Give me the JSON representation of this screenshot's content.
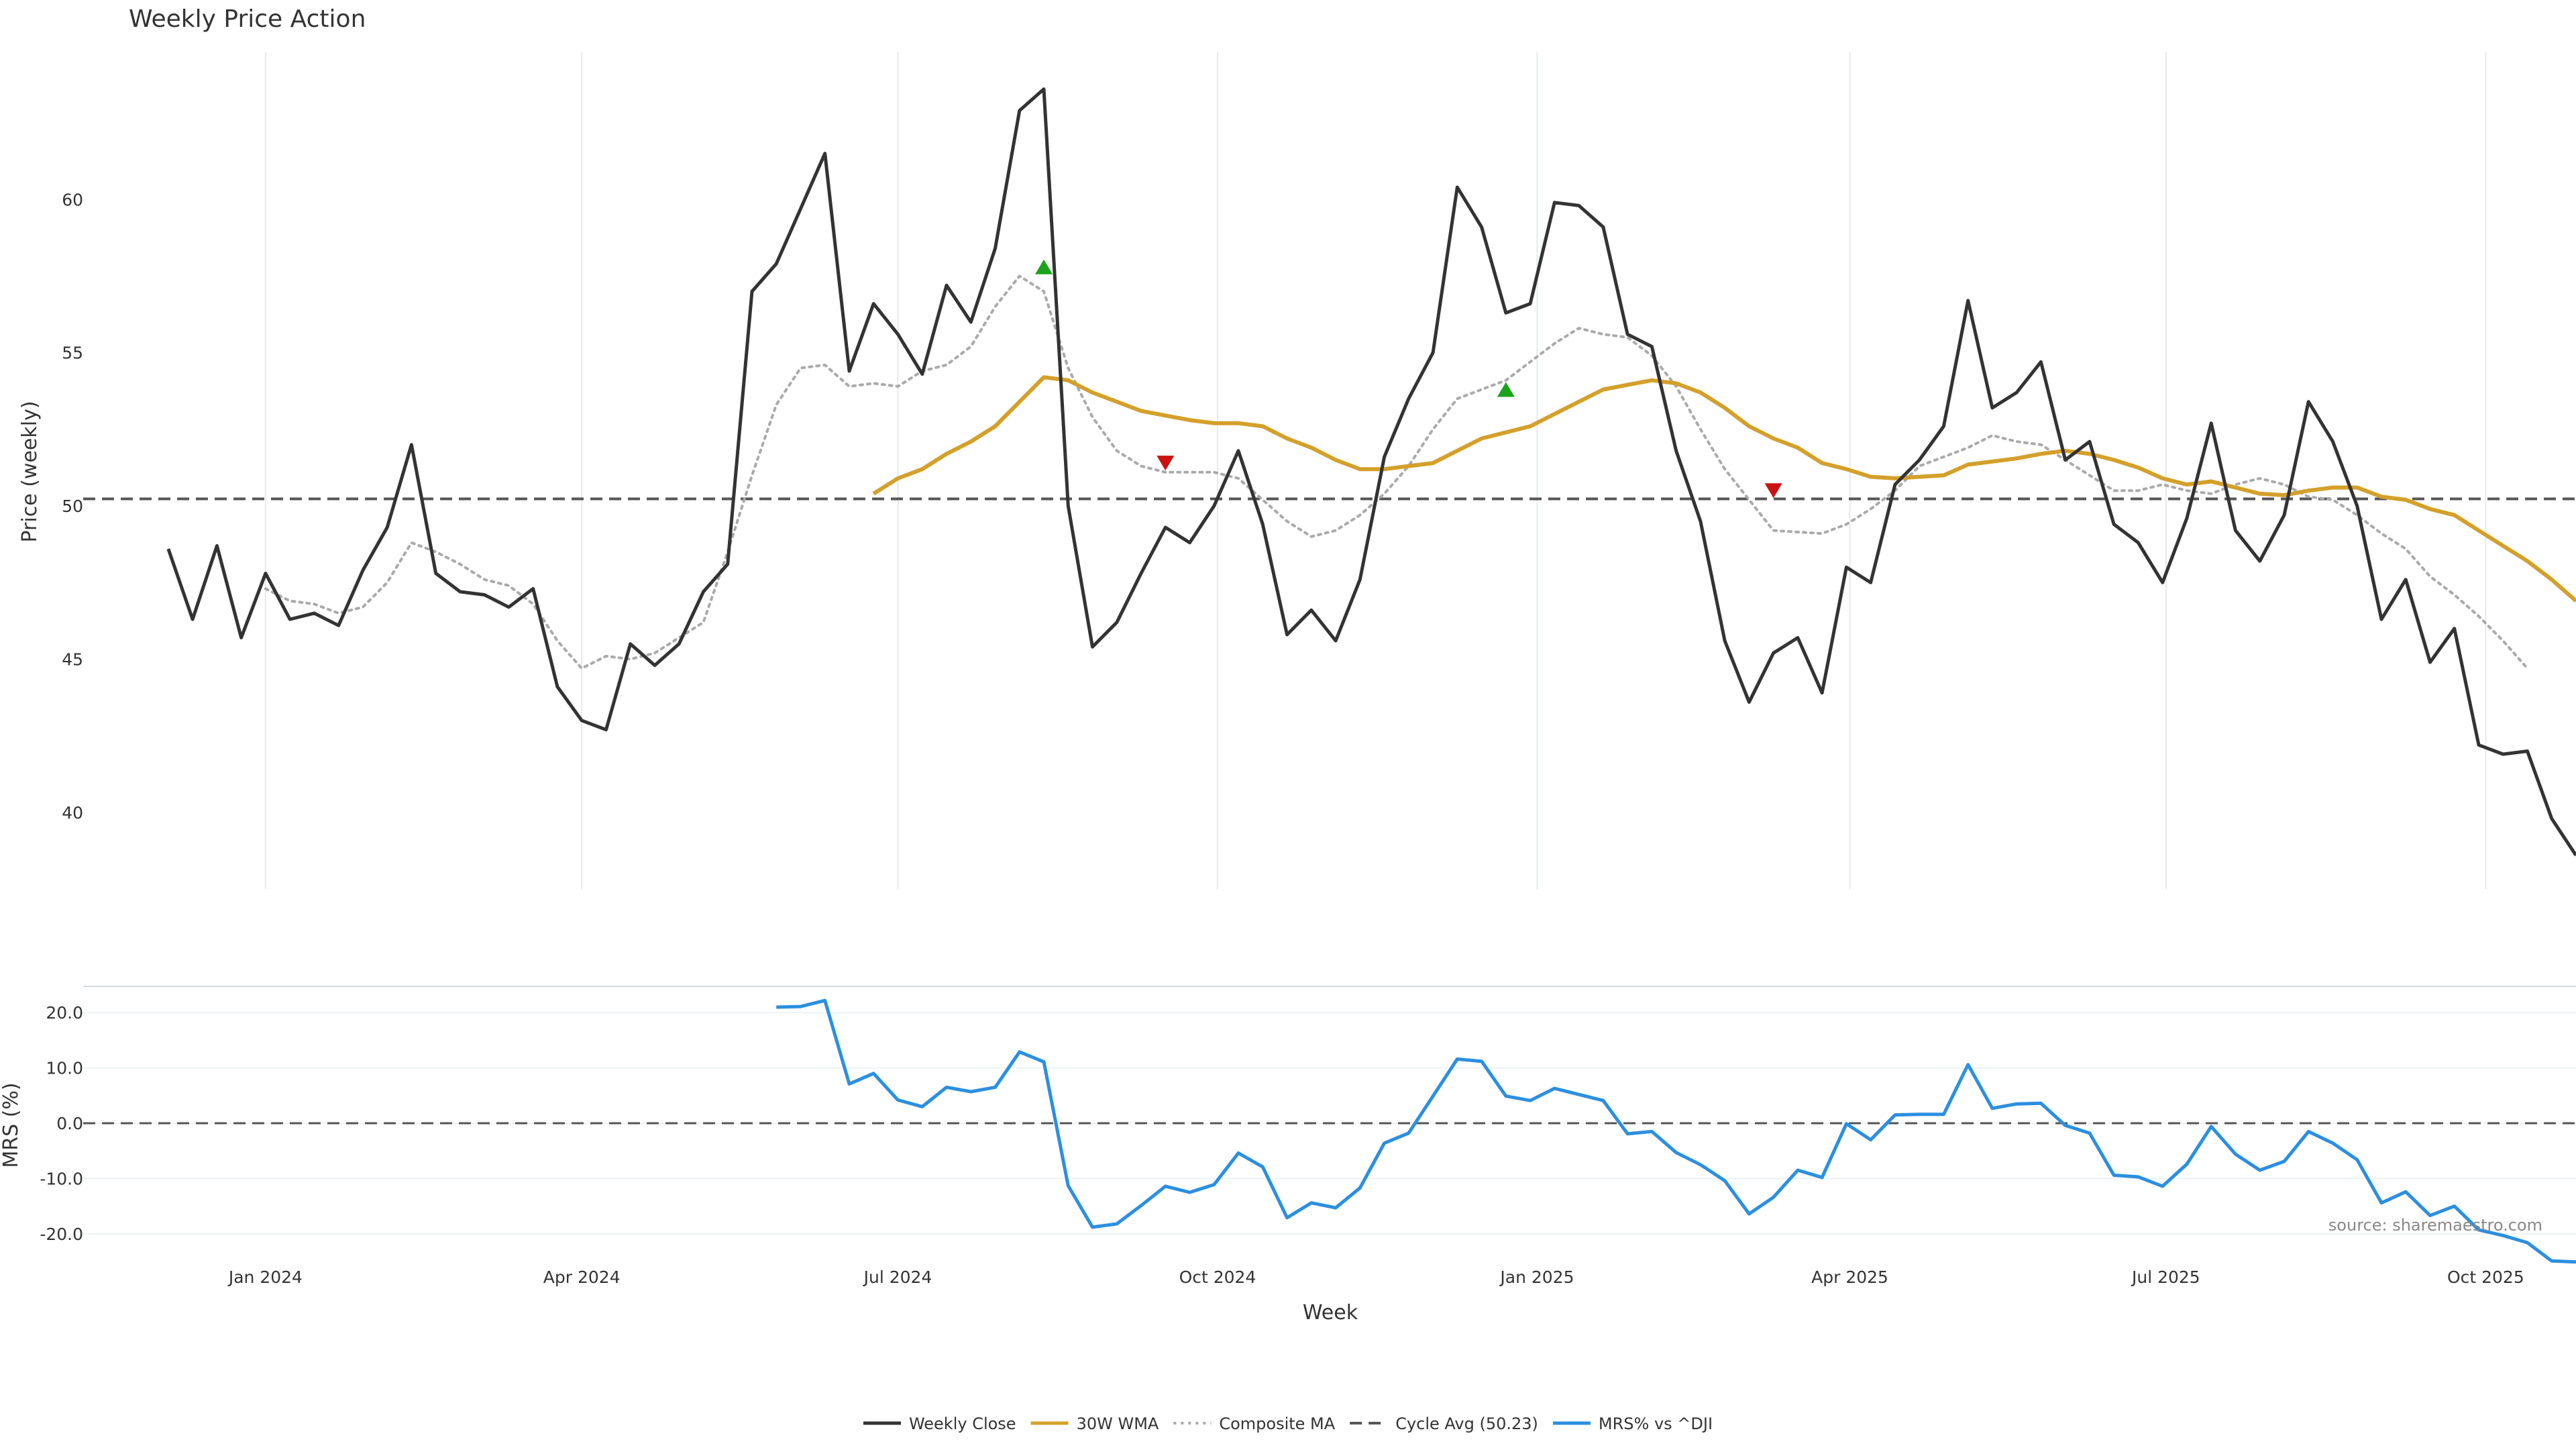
{
  "colors": {
    "close": "#333333",
    "wma": "#d4a02a",
    "composite": "#aaaaaa",
    "cycle": "#555555",
    "mrs": "#2b8fe0",
    "buy": "#1aa31a",
    "sell": "#cc1111",
    "grid": "#e4eaee"
  },
  "chart_data": [
    {
      "type": "line",
      "title": "Weekly Price Action",
      "xlabel": "",
      "ylabel": "Price (weekly)",
      "x_start": "2023-12-04",
      "x_step_days": 7,
      "x_tick_labels": [
        "Jan 2024",
        "Apr 2024",
        "Jul 2024",
        "Oct 2024",
        "Jan 2025",
        "Apr 2025",
        "Jul 2025",
        "Oct 2025"
      ],
      "x_tick_dates": [
        "2024-01-01",
        "2024-04-01",
        "2024-07-01",
        "2024-10-01",
        "2025-01-01",
        "2025-04-01",
        "2025-07-01",
        "2025-10-01"
      ],
      "ylim": [
        37.5,
        64.8
      ],
      "y_ticks": [
        40,
        45,
        50,
        55,
        60
      ],
      "grid": true,
      "series": [
        {
          "name": "Weekly Close",
          "style": "solid",
          "start_index": 0,
          "values": [
            48.6,
            46.3,
            48.7,
            45.7,
            47.8,
            46.3,
            46.5,
            46.1,
            47.9,
            49.3,
            52.0,
            47.8,
            47.2,
            47.1,
            46.7,
            47.3,
            44.1,
            43.0,
            42.7,
            45.5,
            44.8,
            45.5,
            47.2,
            48.1,
            57.0,
            57.9,
            59.7,
            61.5,
            54.4,
            56.6,
            55.6,
            54.3,
            57.2,
            56.0,
            58.4,
            62.9,
            63.6,
            50.0,
            45.4,
            46.2,
            47.8,
            49.3,
            48.8,
            50.0,
            51.8,
            49.4,
            45.8,
            46.6,
            45.6,
            47.6,
            51.6,
            53.5,
            55.0,
            60.4,
            59.1,
            56.3,
            56.6,
            59.9,
            59.8,
            59.1,
            55.6,
            55.2,
            51.8,
            49.5,
            45.6,
            43.6,
            45.2,
            45.7,
            43.9,
            48.0,
            47.5,
            50.7,
            51.5,
            52.6,
            56.7,
            53.2,
            53.7,
            54.7,
            51.5,
            52.1,
            49.4,
            48.8,
            47.5,
            49.6,
            52.7,
            49.2,
            48.2,
            49.7,
            53.4,
            52.1,
            50.0,
            46.3,
            47.6,
            44.9,
            46.0,
            42.2,
            41.9,
            42.0,
            39.8,
            38.6
          ]
        },
        {
          "name": "30W WMA",
          "style": "solid",
          "start_index": 29,
          "values": [
            50.4,
            50.9,
            51.2,
            51.7,
            52.1,
            52.6,
            53.4,
            54.2,
            54.1,
            53.7,
            53.4,
            53.1,
            52.95,
            52.8,
            52.7,
            52.7,
            52.6,
            52.2,
            51.9,
            51.5,
            51.2,
            51.2,
            51.3,
            51.4,
            51.8,
            52.2,
            52.4,
            52.6,
            53.0,
            53.4,
            53.8,
            53.95,
            54.1,
            54.0,
            53.7,
            53.2,
            52.6,
            52.2,
            51.9,
            51.4,
            51.2,
            50.95,
            50.9,
            50.95,
            51.0,
            51.35,
            51.45,
            51.55,
            51.7,
            51.8,
            51.7,
            51.5,
            51.25,
            50.9,
            50.7,
            50.8,
            50.6,
            50.4,
            50.35,
            50.5,
            50.6,
            50.6,
            50.3,
            50.2,
            49.9,
            49.7,
            49.2,
            48.7,
            48.2,
            47.6,
            46.9
          ]
        },
        {
          "name": "Composite MA",
          "style": "dotted",
          "start_index": 4,
          "values": [
            47.3,
            46.9,
            46.8,
            46.5,
            46.7,
            47.5,
            48.8,
            48.5,
            48.1,
            47.6,
            47.4,
            46.8,
            45.6,
            44.7,
            45.1,
            45.0,
            45.2,
            45.7,
            46.2,
            48.5,
            51.0,
            53.3,
            54.5,
            54.6,
            53.9,
            54.0,
            53.9,
            54.4,
            54.6,
            55.2,
            56.5,
            57.5,
            57.0,
            54.5,
            52.9,
            51.8,
            51.3,
            51.1,
            51.1,
            51.1,
            50.9,
            50.2,
            49.5,
            49.0,
            49.2,
            49.7,
            50.4,
            51.3,
            52.5,
            53.5,
            53.8,
            54.1,
            54.7,
            55.3,
            55.8,
            55.6,
            55.5,
            54.9,
            53.9,
            52.5,
            51.2,
            50.2,
            49.2,
            49.15,
            49.1,
            49.4,
            49.9,
            50.5,
            51.3,
            51.6,
            51.9,
            52.3,
            52.1,
            52.0,
            51.5,
            51.0,
            50.5,
            50.5,
            50.7,
            50.5,
            50.4,
            50.7,
            50.9,
            50.7,
            50.3,
            50.2,
            49.7,
            49.1,
            48.6,
            47.7,
            47.1,
            46.4,
            45.6,
            44.7
          ]
        },
        {
          "name": "Cycle Avg (50.23)",
          "style": "dashed",
          "constant": 50.23
        }
      ],
      "markers": [
        {
          "type": "buy",
          "x_index": 36,
          "y": 57.8
        },
        {
          "type": "sell",
          "x_index": 41,
          "y": 51.4
        },
        {
          "type": "buy",
          "x_index": 55,
          "y": 53.8
        },
        {
          "type": "sell",
          "x_index": 66,
          "y": 50.5
        }
      ]
    },
    {
      "type": "line",
      "title": "",
      "xlabel": "Week",
      "ylabel": "MRS (%)",
      "ylim": [
        -25.0,
        25.0
      ],
      "y_ticks": [
        -20.0,
        -10.0,
        0.0,
        10.0,
        20.0
      ],
      "grid": true,
      "series": [
        {
          "name": "MRS% vs ^DJI",
          "style": "solid",
          "start_index": 25,
          "values": [
            21.0,
            21.1,
            22.2,
            7.1,
            9.0,
            4.2,
            3.0,
            6.5,
            5.7,
            6.5,
            12.9,
            11.1,
            -11.3,
            -18.8,
            -18.2,
            -14.9,
            -11.4,
            -12.5,
            -11.1,
            -5.4,
            -7.9,
            -17.1,
            -14.4,
            -15.3,
            -11.7,
            -3.6,
            -1.8,
            4.9,
            11.6,
            11.2,
            4.9,
            4.1,
            6.3,
            5.2,
            4.1,
            -1.9,
            -1.5,
            -5.3,
            -7.5,
            -10.4,
            -16.4,
            -13.4,
            -8.5,
            -9.8,
            -0.1,
            -3.0,
            1.5,
            1.6,
            1.6,
            10.6,
            2.7,
            3.5,
            3.6,
            -0.4,
            -1.8,
            -9.4,
            -9.7,
            -11.4,
            -7.4,
            -0.6,
            -5.6,
            -8.5,
            -6.9,
            -1.5,
            -3.6,
            -6.6,
            -14.4,
            -12.4,
            -16.7,
            -15.0,
            -19.3,
            -20.3,
            -21.6,
            -24.9,
            -25.1
          ]
        },
        {
          "name": "Zero",
          "style": "dashed",
          "constant": 0.0
        }
      ],
      "annotations": [
        "source: sharemaestro.com"
      ]
    }
  ],
  "legend": {
    "placement": "bottom-center",
    "items": [
      {
        "label": "Weekly Close",
        "style": "solid",
        "color": "#333333"
      },
      {
        "label": "30W WMA",
        "style": "solid",
        "color": "#d4a02a"
      },
      {
        "label": "Composite MA",
        "style": "dotted",
        "color": "#aaaaaa"
      },
      {
        "label": "Cycle Avg (50.23)",
        "style": "dashed",
        "color": "#555555"
      },
      {
        "label": "MRS% vs ^DJI",
        "style": "solid",
        "color": "#2b8fe0"
      }
    ]
  }
}
